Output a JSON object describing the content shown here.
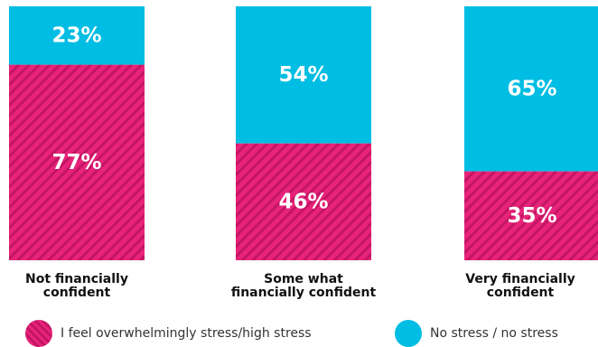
{
  "chart_data": {
    "type": "bar",
    "stacked": true,
    "percent": true,
    "categories": [
      "Not financially\nconfident",
      "Some what\nfinancially confident",
      "Very financially\nconfident"
    ],
    "series": [
      {
        "name": "I feel overwhelmingly stress/high stress",
        "values": [
          77,
          46,
          35
        ],
        "labels": [
          "77%",
          "46%",
          "35%"
        ],
        "color": "#e8237a",
        "pattern": "diagonal-stripes"
      },
      {
        "name": "No stress / no stress",
        "values": [
          23,
          54,
          65
        ],
        "labels": [
          "23%",
          "54%",
          "65%"
        ],
        "color": "#00bde3"
      }
    ],
    "ylim": [
      0,
      100
    ],
    "grid": false,
    "legend": "bottom",
    "title": "",
    "xlabel": "",
    "ylabel": ""
  }
}
